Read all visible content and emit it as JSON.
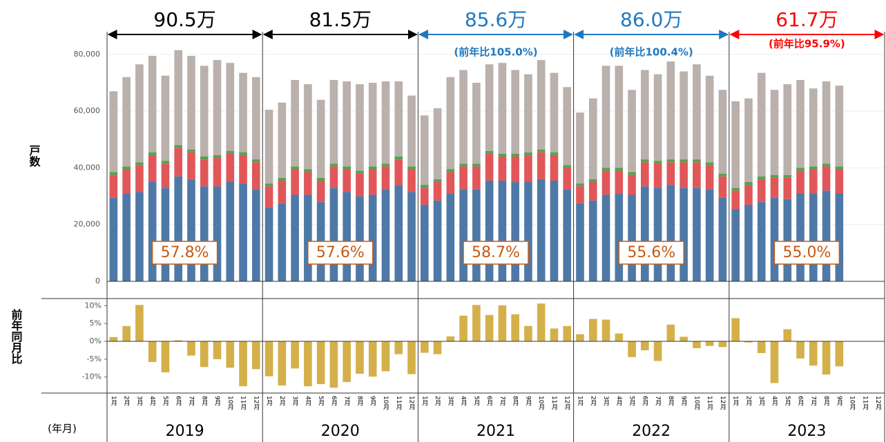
{
  "x_axis": {
    "label": "(年月)",
    "categories": [
      "1月",
      "2月",
      "3月",
      "4月",
      "5月",
      "6月",
      "7月",
      "8月",
      "9月",
      "10月",
      "11月",
      "12月",
      "1月",
      "2月",
      "3月",
      "4月",
      "5月",
      "6月",
      "7月",
      "8月",
      "9月",
      "10月",
      "11月",
      "12月",
      "1月",
      "2月",
      "3月",
      "4月",
      "5月",
      "6月",
      "7月",
      "8月",
      "9月",
      "10月",
      "11月",
      "12月",
      "1月",
      "2月",
      "3月",
      "4月",
      "5月",
      "6月",
      "7月",
      "8月",
      "9月",
      "10月",
      "11月",
      "12月",
      "1月",
      "2月",
      "3月",
      "4月",
      "5月",
      "6月",
      "7月",
      "8月",
      "9月",
      "10月",
      "11月",
      "12月"
    ],
    "years": [
      "2019",
      "2020",
      "2021",
      "2022",
      "2023"
    ]
  },
  "chart_data": [
    {
      "type": "bar",
      "stacked": true,
      "ylabel": "戸数",
      "grid": true,
      "ylim": [
        0,
        88000
      ],
      "yticks": [
        0,
        {
          "value": 20000,
          "label": "20,000"
        },
        {
          "value": 40000,
          "label": "40,000"
        },
        {
          "value": 60000,
          "label": "60,000"
        },
        {
          "value": 80000,
          "label": "80,000"
        }
      ],
      "series": [
        {
          "color": "#4e79a7",
          "values": [
            29500,
            31000,
            31500,
            35000,
            33000,
            37000,
            36000,
            33500,
            33500,
            35000,
            34500,
            32500,
            26000,
            27500,
            30500,
            30500,
            28000,
            33000,
            31500,
            30000,
            30500,
            32500,
            34000,
            31500,
            27000,
            28500,
            31000,
            32500,
            32500,
            35500,
            35500,
            35000,
            35000,
            36000,
            35500,
            32500,
            27500,
            28500,
            30500,
            31000,
            30500,
            33500,
            33000,
            34000,
            33000,
            33000,
            32500,
            29500,
            25500,
            27000,
            28000,
            29500,
            29000,
            31000,
            31000,
            32000,
            31000,
            null,
            null,
            null
          ]
        },
        {
          "color": "#e15759",
          "values": [
            8000,
            8500,
            9500,
            9500,
            8500,
            10000,
            9500,
            9500,
            10000,
            10000,
            10000,
            9500,
            7500,
            8000,
            9000,
            8000,
            7500,
            7500,
            8000,
            8000,
            9000,
            8000,
            9000,
            8000,
            6000,
            6500,
            7500,
            8000,
            8000,
            9500,
            8500,
            9000,
            9500,
            9500,
            9000,
            7500,
            6000,
            6500,
            8500,
            8000,
            7000,
            8500,
            8500,
            8000,
            9000,
            9000,
            8500,
            7500,
            6500,
            7000,
            8000,
            7000,
            7500,
            8000,
            8500,
            8500,
            8500,
            null,
            null,
            null
          ]
        },
        {
          "color": "#59a14f",
          "values": [
            1000,
            1000,
            1000,
            1000,
            1000,
            1000,
            1000,
            1000,
            1000,
            1000,
            1000,
            1000,
            1000,
            1000,
            1000,
            1000,
            1000,
            1000,
            1000,
            1000,
            1000,
            1000,
            1000,
            1000,
            1000,
            1000,
            1000,
            1000,
            1000,
            1000,
            1000,
            1000,
            1000,
            1000,
            1000,
            1000,
            1000,
            1000,
            1000,
            1000,
            1000,
            1000,
            1000,
            1000,
            1000,
            1000,
            1000,
            1000,
            1000,
            1000,
            1000,
            1000,
            1000,
            1000,
            1000,
            1000,
            1000,
            null,
            null,
            null
          ]
        },
        {
          "color": "#bab0ac",
          "values": [
            28500,
            31500,
            34500,
            34000,
            30000,
            33500,
            33000,
            32000,
            33500,
            31000,
            28000,
            29000,
            26000,
            26500,
            30500,
            30000,
            27500,
            29500,
            30000,
            30500,
            29500,
            29000,
            26500,
            25000,
            24500,
            25000,
            32500,
            33000,
            28500,
            30500,
            32000,
            29500,
            27500,
            31500,
            28000,
            27500,
            25000,
            28500,
            36000,
            36000,
            29000,
            31500,
            30500,
            34500,
            31000,
            33500,
            30500,
            29500,
            30500,
            29500,
            36500,
            30000,
            32000,
            31000,
            27500,
            29000,
            28500,
            null,
            null,
            null
          ]
        }
      ],
      "year_notes": [
        {
          "total": "90.5万",
          "color": "#000000"
        },
        {
          "total": "81.5万",
          "color": "#000000"
        },
        {
          "total": "85.6万",
          "yoy": "(前年比105.0%)",
          "color": "#1f78c1"
        },
        {
          "total": "86.0万",
          "yoy": "(前年比100.4%)",
          "color": "#1f78c1"
        },
        {
          "total": "61.7万",
          "yoy": "(前年比95.9%)",
          "color": "#ff0000"
        }
      ],
      "share_labels": [
        "57.8%",
        "57.6%",
        "58.7%",
        "55.6%",
        "55.0%"
      ]
    },
    {
      "type": "bar",
      "ylabel": "前年同月比",
      "color": "#d4b04a",
      "ylim": [
        -14.5,
        12
      ],
      "yticks": [
        {
          "value": 10,
          "label": "10%"
        },
        {
          "value": 5,
          "label": "5%"
        },
        {
          "value": 0,
          "label": "0%"
        },
        {
          "value": -5,
          "label": "-5%"
        },
        {
          "value": -10,
          "label": "-10%"
        }
      ],
      "values": [
        1.2,
        4.3,
        10.2,
        -5.8,
        -8.7,
        0.3,
        -4.0,
        -7.2,
        -5.0,
        -7.4,
        -12.6,
        -7.8,
        -9.8,
        -12.4,
        -7.6,
        -12.6,
        -12.0,
        -13.0,
        -11.4,
        -9.1,
        -9.9,
        -8.4,
        -3.6,
        -9.2,
        -3.2,
        -3.6,
        1.4,
        7.2,
        10.2,
        7.4,
        10.1,
        7.6,
        4.3,
        10.6,
        3.6,
        4.3,
        2.0,
        6.3,
        6.1,
        2.2,
        -4.4,
        -2.5,
        -5.5,
        4.7,
        1.3,
        -1.9,
        -1.3,
        -1.6,
        6.5,
        -0.3,
        -3.3,
        -11.7,
        3.4,
        -4.8,
        -6.8,
        -9.3,
        -7.0,
        null,
        null,
        null
      ]
    }
  ]
}
